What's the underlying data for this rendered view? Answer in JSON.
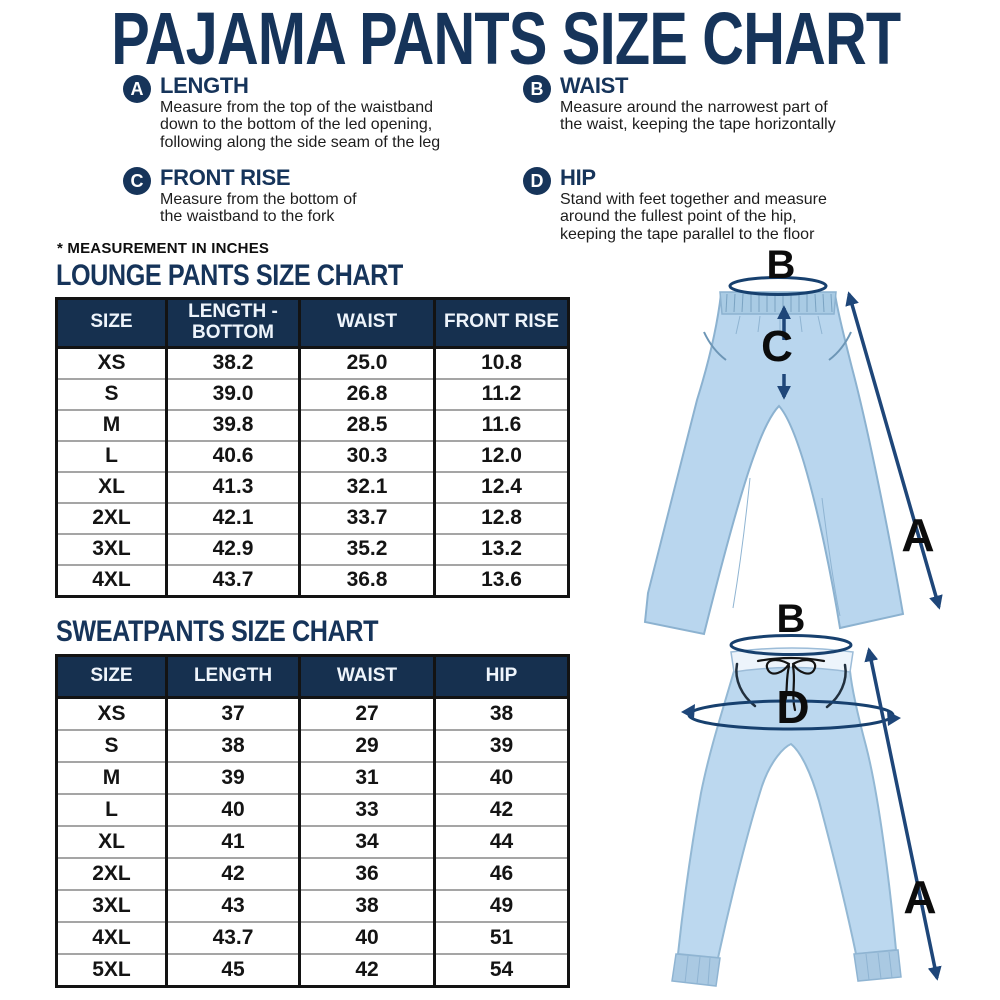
{
  "title": "PAJAMA PANTS SIZE CHART",
  "note": "* MEASUREMENT IN INCHES",
  "colors": {
    "navy": "#16345a",
    "table_header_navy": "#16304f",
    "arrow_blue": "#1e4679",
    "pants_blue": "#b9d6ee",
    "body_text": "#1d1d1d"
  },
  "measurements": [
    {
      "letter": "A",
      "title": "LENGTH",
      "lines": [
        "Measure from the top of the waistband",
        "down to the bottom of the led opening,",
        "following along the side seam of the leg"
      ]
    },
    {
      "letter": "B",
      "title": "WAIST",
      "lines": [
        "Measure around the narrowest part of",
        "the waist, keeping the tape horizontally"
      ]
    },
    {
      "letter": "C",
      "title": "FRONT RISE",
      "lines": [
        "Measure from the bottom of",
        "the waistband to the fork"
      ]
    },
    {
      "letter": "D",
      "title": "HIP",
      "lines": [
        "Stand with feet together and measure",
        "around the fullest point of the hip,",
        "keeping the tape parallel to the floor"
      ]
    }
  ],
  "lounge_table": {
    "title": "LOUNGE PANTS SIZE CHART",
    "headers": [
      "SIZE",
      "LENGTH - BOTTOM",
      "WAIST",
      "FRONT RISE"
    ],
    "rows": [
      [
        "XS",
        "38.2",
        "25.0",
        "10.8"
      ],
      [
        "S",
        "39.0",
        "26.8",
        "11.2"
      ],
      [
        "M",
        "39.8",
        "28.5",
        "11.6"
      ],
      [
        "L",
        "40.6",
        "30.3",
        "12.0"
      ],
      [
        "XL",
        "41.3",
        "32.1",
        "12.4"
      ],
      [
        "2XL",
        "42.1",
        "33.7",
        "12.8"
      ],
      [
        "3XL",
        "42.9",
        "35.2",
        "13.2"
      ],
      [
        "4XL",
        "43.7",
        "36.8",
        "13.6"
      ]
    ]
  },
  "sweatpants_table": {
    "title": "SWEATPANTS SIZE CHART",
    "headers": [
      "SIZE",
      "LENGTH",
      "WAIST",
      "HIP"
    ],
    "rows": [
      [
        "XS",
        "37",
        "27",
        "38"
      ],
      [
        "S",
        "38",
        "29",
        "39"
      ],
      [
        "M",
        "39",
        "31",
        "40"
      ],
      [
        "L",
        "40",
        "33",
        "42"
      ],
      [
        "XL",
        "41",
        "34",
        "44"
      ],
      [
        "2XL",
        "42",
        "36",
        "46"
      ],
      [
        "3XL",
        "43",
        "38",
        "49"
      ],
      [
        "4XL",
        "43.7",
        "40",
        "51"
      ],
      [
        "5XL",
        "45",
        "42",
        "54"
      ]
    ]
  },
  "illustrations": {
    "lounge_pants": {
      "label_a": "A",
      "label_b": "B",
      "label_c": "C"
    },
    "sweatpants": {
      "label_a": "A",
      "label_b": "B",
      "label_d": "D"
    }
  }
}
